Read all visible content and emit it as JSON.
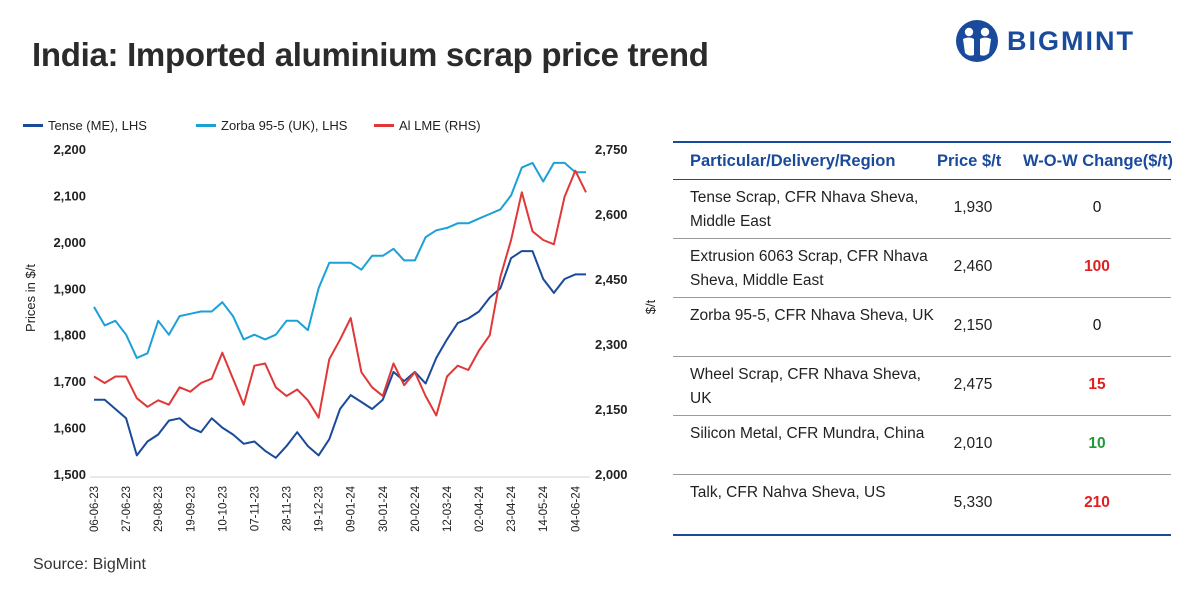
{
  "title": "India: Imported aluminium scrap price trend",
  "brand": {
    "name": "BIGMINT",
    "color": "#1a4a9b"
  },
  "source": "Source: BigMint",
  "chart_data": {
    "type": "line",
    "ylabel_left": "Prices in $/t",
    "ylabel_right": "$/t",
    "ylim_left": [
      1500,
      2200
    ],
    "ylim_right": [
      2000,
      2750
    ],
    "yticks_left": [
      "1,500",
      "1,600",
      "1,700",
      "1,800",
      "1,900",
      "2,000",
      "2,100",
      "2,200"
    ],
    "yticks_right": [
      "2,000",
      "2,150",
      "2,300",
      "2,450",
      "2,600",
      "2,750"
    ],
    "x_tick_labels": [
      "06-06-23",
      "27-06-23",
      "29-08-23",
      "19-09-23",
      "10-10-23",
      "07-11-23",
      "28-11-23",
      "19-12-23",
      "09-01-24",
      "30-01-24",
      "20-02-24",
      "12-03-24",
      "02-04-24",
      "23-04-24",
      "14-05-24",
      "04-06-24"
    ],
    "legend_placement": "top-left",
    "grid": false,
    "series": [
      {
        "name": "Tense (ME), LHS",
        "axis": "left",
        "color": "#1a4a9b",
        "values": [
          1660,
          1660,
          1640,
          1620,
          1540,
          1570,
          1585,
          1615,
          1620,
          1600,
          1590,
          1620,
          1600,
          1585,
          1565,
          1570,
          1550,
          1535,
          1560,
          1590,
          1560,
          1540,
          1575,
          1640,
          1670,
          1655,
          1640,
          1660,
          1720,
          1700,
          1720,
          1695,
          1750,
          1790,
          1825,
          1835,
          1850,
          1880,
          1900,
          1965,
          1980,
          1980,
          1920,
          1890,
          1920,
          1930,
          1930
        ]
      },
      {
        "name": "Zorba 95-5 (UK), LHS",
        "axis": "left",
        "color": "#1ca0d8",
        "values": [
          1860,
          1820,
          1830,
          1800,
          1750,
          1760,
          1830,
          1800,
          1840,
          1845,
          1850,
          1850,
          1870,
          1840,
          1790,
          1800,
          1790,
          1800,
          1830,
          1830,
          1810,
          1900,
          1955,
          1955,
          1955,
          1940,
          1970,
          1970,
          1985,
          1960,
          1960,
          2010,
          2025,
          2030,
          2040,
          2040,
          2050,
          2060,
          2070,
          2100,
          2160,
          2170,
          2130,
          2170,
          2170,
          2150,
          2150
        ]
      },
      {
        "name": "Al LME (RHS)",
        "axis": "right",
        "color": "#e03838",
        "values": [
          2225,
          2210,
          2225,
          2225,
          2175,
          2155,
          2170,
          2160,
          2200,
          2190,
          2210,
          2220,
          2280,
          2220,
          2160,
          2250,
          2255,
          2200,
          2180,
          2195,
          2170,
          2130,
          2265,
          2310,
          2360,
          2235,
          2200,
          2180,
          2255,
          2205,
          2235,
          2180,
          2135,
          2225,
          2250,
          2240,
          2285,
          2320,
          2455,
          2540,
          2650,
          2560,
          2540,
          2530,
          2640,
          2700,
          2650
        ]
      }
    ]
  },
  "table": {
    "headers": [
      "Particular/Delivery/Region",
      "Price $/t",
      "W-O-W Change($/t)"
    ],
    "rows": [
      {
        "name": "Tense Scrap, CFR Nhava Sheva, Middle East",
        "price": "1,930",
        "change": "0",
        "change_color": "#111111"
      },
      {
        "name": "Extrusion 6063 Scrap, CFR Nhava Sheva, Middle East",
        "price": "2,460",
        "change": "100",
        "change_color": "#e02020"
      },
      {
        "name": "Zorba 95-5, CFR Nhava Sheva, UK",
        "price": "2,150",
        "change": "0",
        "change_color": "#111111"
      },
      {
        "name": "Wheel Scrap, CFR Nhava Sheva, UK",
        "price": "2,475",
        "change": "15",
        "change_color": "#e02020"
      },
      {
        "name": "Silicon Metal, CFR Mundra, China",
        "price": "2,010",
        "change": "10",
        "change_color": "#1f9a3a"
      },
      {
        "name": "Talk, CFR Nahva Sheva, US",
        "price": "5,330",
        "change": "210",
        "change_color": "#e02020"
      }
    ]
  }
}
